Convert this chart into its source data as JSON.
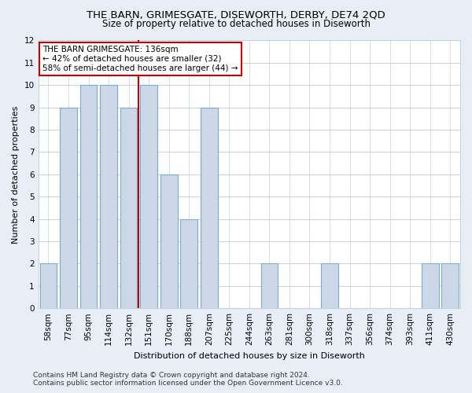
{
  "title": "THE BARN, GRIMESGATE, DISEWORTH, DERBY, DE74 2QD",
  "subtitle": "Size of property relative to detached houses in Diseworth",
  "xlabel": "Distribution of detached houses by size in Diseworth",
  "ylabel": "Number of detached properties",
  "categories": [
    "58sqm",
    "77sqm",
    "95sqm",
    "114sqm",
    "132sqm",
    "151sqm",
    "170sqm",
    "188sqm",
    "207sqm",
    "225sqm",
    "244sqm",
    "263sqm",
    "281sqm",
    "300sqm",
    "318sqm",
    "337sqm",
    "356sqm",
    "374sqm",
    "393sqm",
    "411sqm",
    "430sqm"
  ],
  "values": [
    2,
    9,
    10,
    10,
    9,
    10,
    6,
    4,
    9,
    0,
    0,
    2,
    0,
    0,
    2,
    0,
    0,
    0,
    0,
    2,
    2
  ],
  "bar_color": "#ccd8e8",
  "bar_edge_color": "#7aaad0",
  "red_line_x": 4.5,
  "annotation_line1": "THE BARN GRIMESGATE: 136sqm",
  "annotation_line2": "← 42% of detached houses are smaller (32)",
  "annotation_line3": "58% of semi-detached houses are larger (44) →",
  "annotation_box_color": "white",
  "annotation_box_edge_color": "#cc0000",
  "ylim": [
    0,
    12
  ],
  "yticks": [
    0,
    1,
    2,
    3,
    4,
    5,
    6,
    7,
    8,
    9,
    10,
    11,
    12
  ],
  "footer_text": "Contains HM Land Registry data © Crown copyright and database right 2024.\nContains public sector information licensed under the Open Government Licence v3.0.",
  "title_fontsize": 9.5,
  "subtitle_fontsize": 8.5,
  "xlabel_fontsize": 8,
  "ylabel_fontsize": 8,
  "tick_fontsize": 7.5,
  "annotation_fontsize": 7.5,
  "footer_fontsize": 6.5,
  "background_color": "#e8eef5",
  "plot_background_color": "#ffffff",
  "grid_color": "#c8d0da"
}
